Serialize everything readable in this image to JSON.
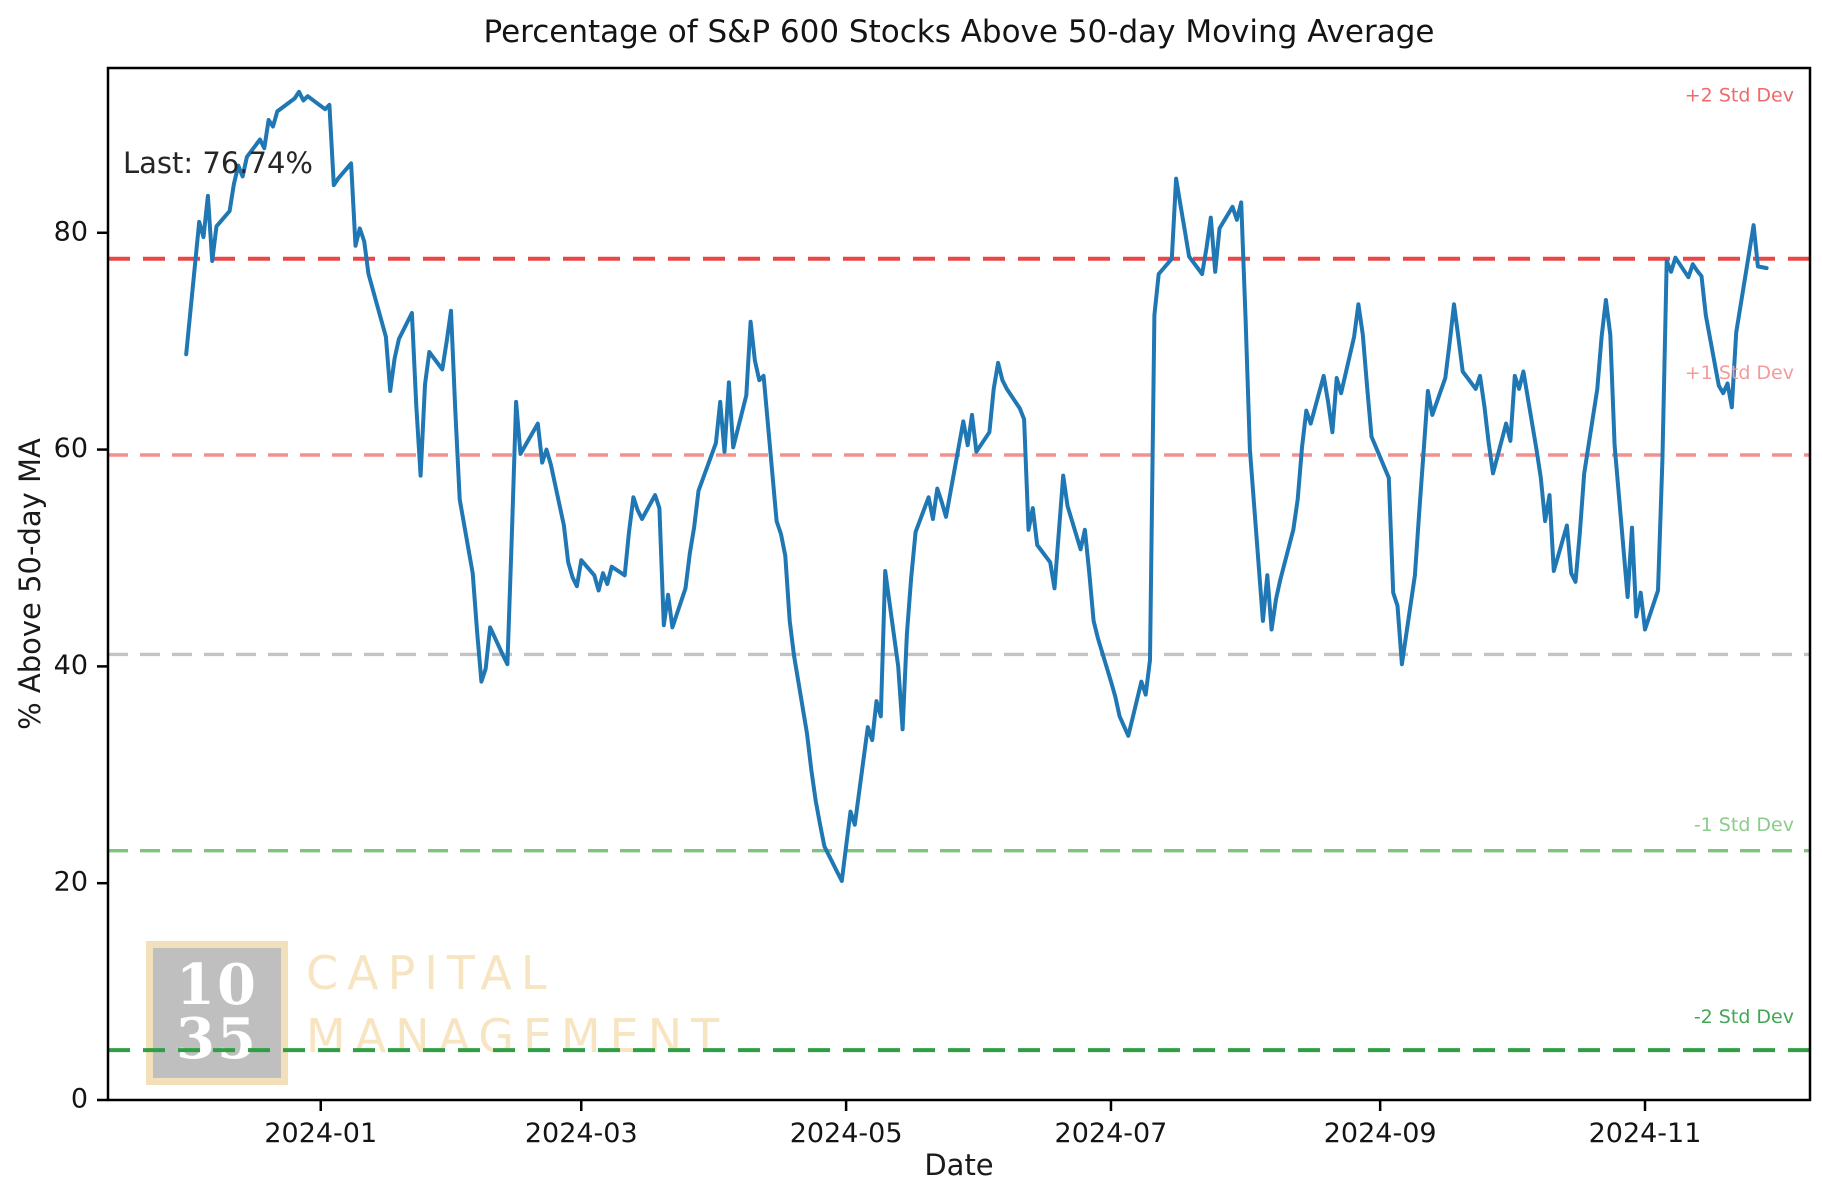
{
  "figure": {
    "title": "Percentage of S&P 600 Stocks Above 50-day Moving Average",
    "x_axis_label": "Date",
    "y_axis_label": "% Above 50-day MA",
    "last_annotation": "Last: 76.74%"
  },
  "logo": {
    "box_line1": "10",
    "box_line2": "35",
    "text_line1": "CAPITAL",
    "text_line2": "MANAGEMENT",
    "box_color": "#8c8c8c",
    "accent_color": "#e9c882"
  },
  "chart_data": {
    "type": "line",
    "title": "Percentage of S&P 600 Stocks Above 50-day Moving Average",
    "xlabel": "Date",
    "ylabel": "% Above 50-day MA",
    "grid": false,
    "last_value": 76.74,
    "xlim": [
      "2023-11-13",
      "2024-12-09"
    ],
    "ylim": [
      0,
      95.2
    ],
    "y_ticks": [
      {
        "value": 0,
        "label": "0"
      },
      {
        "value": 20,
        "label": "20"
      },
      {
        "value": 40,
        "label": "40"
      },
      {
        "value": 60,
        "label": "60"
      },
      {
        "value": 80,
        "label": "80"
      }
    ],
    "x_ticks": [
      {
        "date": "2024-01-01",
        "label": "2024-01"
      },
      {
        "date": "2024-03-01",
        "label": "2024-03"
      },
      {
        "date": "2024-05-01",
        "label": "2024-05"
      },
      {
        "date": "2024-07-01",
        "label": "2024-07"
      },
      {
        "date": "2024-09-01",
        "label": "2024-09"
      },
      {
        "date": "2024-11-01",
        "label": "2024-11"
      }
    ],
    "reference_lines": [
      {
        "label": "+2 Std Dev",
        "value": 77.6,
        "color": "#e94646",
        "dash": "22 13",
        "width": 4,
        "label_color": "#ef6a6a",
        "label_value": 92.6
      },
      {
        "label": "+1 Std Dev",
        "value": 59.5,
        "color": "#f29090",
        "dash": "20 12",
        "width": 3.4,
        "label_color": "#f29b9b",
        "label_value": 67.0
      },
      {
        "label": "",
        "value": 41.1,
        "color": "#c3c3c3",
        "dash": "20 12",
        "width": 3.4,
        "label_color": "#c3c3c3",
        "label_value": null
      },
      {
        "label": "-1 Std Dev",
        "value": 23.0,
        "color": "#7ec47e",
        "dash": "20 12",
        "width": 3.4,
        "label_color": "#8bcc8b",
        "label_value": 25.3
      },
      {
        "label": "-2 Std Dev",
        "value": 4.6,
        "color": "#2f9e44",
        "dash": "22 13",
        "width": 4,
        "label_color": "#41a755",
        "label_value": 7.6
      }
    ],
    "series": [
      {
        "name": "% of S&P 600 stocks above 50-day MA",
        "color": "#1f77b4",
        "width": 4,
        "points": [
          [
            "2023-12-01",
            68.8
          ],
          [
            "2023-12-04",
            81.0
          ],
          [
            "2023-12-05",
            79.6
          ],
          [
            "2023-12-06",
            83.4
          ],
          [
            "2023-12-07",
            77.4
          ],
          [
            "2023-12-08",
            80.6
          ],
          [
            "2023-12-11",
            82.0
          ],
          [
            "2023-12-12",
            84.5
          ],
          [
            "2023-12-13",
            86.2
          ],
          [
            "2023-12-14",
            85.2
          ],
          [
            "2023-12-15",
            87.0
          ],
          [
            "2023-12-18",
            88.6
          ],
          [
            "2023-12-19",
            87.8
          ],
          [
            "2023-12-20",
            90.4
          ],
          [
            "2023-12-21",
            89.8
          ],
          [
            "2023-12-22",
            91.2
          ],
          [
            "2023-12-26",
            92.4
          ],
          [
            "2023-12-27",
            93.0
          ],
          [
            "2023-12-28",
            92.2
          ],
          [
            "2023-12-29",
            92.6
          ],
          [
            "2024-01-02",
            91.4
          ],
          [
            "2024-01-03",
            91.8
          ],
          [
            "2024-01-04",
            84.4
          ],
          [
            "2024-01-05",
            85.0
          ],
          [
            "2024-01-08",
            86.4
          ],
          [
            "2024-01-09",
            78.8
          ],
          [
            "2024-01-10",
            80.4
          ],
          [
            "2024-01-11",
            79.2
          ],
          [
            "2024-01-12",
            76.2
          ],
          [
            "2024-01-16",
            70.4
          ],
          [
            "2024-01-17",
            65.4
          ],
          [
            "2024-01-18",
            68.4
          ],
          [
            "2024-01-19",
            70.2
          ],
          [
            "2024-01-22",
            72.6
          ],
          [
            "2024-01-23",
            64.0
          ],
          [
            "2024-01-24",
            57.6
          ],
          [
            "2024-01-25",
            66.0
          ],
          [
            "2024-01-26",
            69.0
          ],
          [
            "2024-01-29",
            67.4
          ],
          [
            "2024-01-30",
            70.0
          ],
          [
            "2024-01-31",
            72.8
          ],
          [
            "2024-02-01",
            63.6
          ],
          [
            "2024-02-02",
            55.4
          ],
          [
            "2024-02-05",
            48.6
          ],
          [
            "2024-02-06",
            43.2
          ],
          [
            "2024-02-07",
            38.6
          ],
          [
            "2024-02-08",
            39.8
          ],
          [
            "2024-02-09",
            43.6
          ],
          [
            "2024-02-12",
            41.0
          ],
          [
            "2024-02-13",
            40.2
          ],
          [
            "2024-02-14",
            52.0
          ],
          [
            "2024-02-15",
            64.4
          ],
          [
            "2024-02-16",
            59.6
          ],
          [
            "2024-02-20",
            62.4
          ],
          [
            "2024-02-21",
            58.8
          ],
          [
            "2024-02-22",
            60.0
          ],
          [
            "2024-02-23",
            58.6
          ],
          [
            "2024-02-26",
            53.0
          ],
          [
            "2024-02-27",
            49.6
          ],
          [
            "2024-02-28",
            48.2
          ],
          [
            "2024-02-29",
            47.4
          ],
          [
            "2024-03-01",
            49.8
          ],
          [
            "2024-03-04",
            48.4
          ],
          [
            "2024-03-05",
            47.0
          ],
          [
            "2024-03-06",
            48.6
          ],
          [
            "2024-03-07",
            47.6
          ],
          [
            "2024-03-08",
            49.2
          ],
          [
            "2024-03-11",
            48.4
          ],
          [
            "2024-03-12",
            52.4
          ],
          [
            "2024-03-13",
            55.6
          ],
          [
            "2024-03-14",
            54.4
          ],
          [
            "2024-03-15",
            53.6
          ],
          [
            "2024-03-18",
            55.8
          ],
          [
            "2024-03-19",
            54.6
          ],
          [
            "2024-03-20",
            43.8
          ],
          [
            "2024-03-21",
            46.6
          ],
          [
            "2024-03-22",
            43.6
          ],
          [
            "2024-03-25",
            47.2
          ],
          [
            "2024-03-26",
            50.4
          ],
          [
            "2024-03-27",
            52.8
          ],
          [
            "2024-03-28",
            56.2
          ],
          [
            "2024-04-01",
            60.6
          ],
          [
            "2024-04-02",
            64.4
          ],
          [
            "2024-04-03",
            59.8
          ],
          [
            "2024-04-04",
            66.2
          ],
          [
            "2024-04-05",
            60.2
          ],
          [
            "2024-04-08",
            65.0
          ],
          [
            "2024-04-09",
            71.8
          ],
          [
            "2024-04-10",
            68.2
          ],
          [
            "2024-04-11",
            66.4
          ],
          [
            "2024-04-12",
            66.8
          ],
          [
            "2024-04-15",
            53.4
          ],
          [
            "2024-04-16",
            52.2
          ],
          [
            "2024-04-17",
            50.2
          ],
          [
            "2024-04-18",
            44.2
          ],
          [
            "2024-04-19",
            41.0
          ],
          [
            "2024-04-22",
            33.8
          ],
          [
            "2024-04-23",
            30.4
          ],
          [
            "2024-04-24",
            27.6
          ],
          [
            "2024-04-25",
            25.4
          ],
          [
            "2024-04-26",
            23.4
          ],
          [
            "2024-04-29",
            21.0
          ],
          [
            "2024-04-30",
            20.2
          ],
          [
            "2024-05-01",
            23.4
          ],
          [
            "2024-05-02",
            26.6
          ],
          [
            "2024-05-03",
            25.4
          ],
          [
            "2024-05-06",
            34.4
          ],
          [
            "2024-05-07",
            33.2
          ],
          [
            "2024-05-08",
            36.8
          ],
          [
            "2024-05-09",
            35.4
          ],
          [
            "2024-05-10",
            48.8
          ],
          [
            "2024-05-13",
            40.0
          ],
          [
            "2024-05-14",
            34.2
          ],
          [
            "2024-05-15",
            43.0
          ],
          [
            "2024-05-16",
            48.2
          ],
          [
            "2024-05-17",
            52.4
          ],
          [
            "2024-05-20",
            55.6
          ],
          [
            "2024-05-21",
            53.6
          ],
          [
            "2024-05-22",
            56.4
          ],
          [
            "2024-05-23",
            55.2
          ],
          [
            "2024-05-24",
            53.8
          ],
          [
            "2024-05-28",
            62.6
          ],
          [
            "2024-05-29",
            60.4
          ],
          [
            "2024-05-30",
            63.2
          ],
          [
            "2024-05-31",
            59.8
          ],
          [
            "2024-06-03",
            61.6
          ],
          [
            "2024-06-04",
            65.6
          ],
          [
            "2024-06-05",
            68.0
          ],
          [
            "2024-06-06",
            66.4
          ],
          [
            "2024-06-07",
            65.6
          ],
          [
            "2024-06-10",
            63.8
          ],
          [
            "2024-06-11",
            62.8
          ],
          [
            "2024-06-12",
            52.6
          ],
          [
            "2024-06-13",
            54.6
          ],
          [
            "2024-06-14",
            51.2
          ],
          [
            "2024-06-17",
            49.6
          ],
          [
            "2024-06-18",
            47.2
          ],
          [
            "2024-06-20",
            57.6
          ],
          [
            "2024-06-21",
            54.8
          ],
          [
            "2024-06-24",
            50.8
          ],
          [
            "2024-06-25",
            52.6
          ],
          [
            "2024-06-26",
            48.6
          ],
          [
            "2024-06-27",
            44.2
          ],
          [
            "2024-06-28",
            42.6
          ],
          [
            "2024-07-01",
            38.6
          ],
          [
            "2024-07-02",
            37.2
          ],
          [
            "2024-07-03",
            35.4
          ],
          [
            "2024-07-05",
            33.6
          ],
          [
            "2024-07-08",
            38.6
          ],
          [
            "2024-07-09",
            37.4
          ],
          [
            "2024-07-10",
            40.6
          ],
          [
            "2024-07-11",
            72.4
          ],
          [
            "2024-07-12",
            76.2
          ],
          [
            "2024-07-15",
            77.6
          ],
          [
            "2024-07-16",
            85.0
          ],
          [
            "2024-07-17",
            82.6
          ],
          [
            "2024-07-18",
            80.2
          ],
          [
            "2024-07-19",
            77.8
          ],
          [
            "2024-07-22",
            76.2
          ],
          [
            "2024-07-23",
            78.6
          ],
          [
            "2024-07-24",
            81.4
          ],
          [
            "2024-07-25",
            76.4
          ],
          [
            "2024-07-26",
            80.4
          ],
          [
            "2024-07-29",
            82.4
          ],
          [
            "2024-07-30",
            81.2
          ],
          [
            "2024-07-31",
            82.8
          ],
          [
            "2024-08-01",
            72.0
          ],
          [
            "2024-08-02",
            60.0
          ],
          [
            "2024-08-05",
            44.2
          ],
          [
            "2024-08-06",
            48.4
          ],
          [
            "2024-08-07",
            43.4
          ],
          [
            "2024-08-08",
            46.2
          ],
          [
            "2024-08-09",
            48.0
          ],
          [
            "2024-08-12",
            52.6
          ],
          [
            "2024-08-13",
            55.4
          ],
          [
            "2024-08-14",
            60.2
          ],
          [
            "2024-08-15",
            63.6
          ],
          [
            "2024-08-16",
            62.4
          ],
          [
            "2024-08-19",
            66.8
          ],
          [
            "2024-08-20",
            64.4
          ],
          [
            "2024-08-21",
            61.6
          ],
          [
            "2024-08-22",
            66.6
          ],
          [
            "2024-08-23",
            65.2
          ],
          [
            "2024-08-26",
            70.4
          ],
          [
            "2024-08-27",
            73.4
          ],
          [
            "2024-08-28",
            70.6
          ],
          [
            "2024-08-29",
            65.8
          ],
          [
            "2024-08-30",
            61.2
          ],
          [
            "2024-09-03",
            57.4
          ],
          [
            "2024-09-04",
            46.8
          ],
          [
            "2024-09-05",
            45.6
          ],
          [
            "2024-09-06",
            40.2
          ],
          [
            "2024-09-09",
            48.4
          ],
          [
            "2024-09-10",
            54.2
          ],
          [
            "2024-09-11",
            59.8
          ],
          [
            "2024-09-12",
            65.4
          ],
          [
            "2024-09-13",
            63.2
          ],
          [
            "2024-09-16",
            66.6
          ],
          [
            "2024-09-17",
            69.8
          ],
          [
            "2024-09-18",
            73.4
          ],
          [
            "2024-09-19",
            70.4
          ],
          [
            "2024-09-20",
            67.2
          ],
          [
            "2024-09-23",
            65.6
          ],
          [
            "2024-09-24",
            66.8
          ],
          [
            "2024-09-25",
            64.0
          ],
          [
            "2024-09-26",
            60.6
          ],
          [
            "2024-09-27",
            57.8
          ],
          [
            "2024-09-30",
            62.4
          ],
          [
            "2024-10-01",
            60.8
          ],
          [
            "2024-10-02",
            66.8
          ],
          [
            "2024-10-03",
            65.6
          ],
          [
            "2024-10-04",
            67.2
          ],
          [
            "2024-10-07",
            60.0
          ],
          [
            "2024-10-08",
            57.4
          ],
          [
            "2024-10-09",
            53.4
          ],
          [
            "2024-10-10",
            55.8
          ],
          [
            "2024-10-11",
            48.8
          ],
          [
            "2024-10-14",
            53.0
          ],
          [
            "2024-10-15",
            48.6
          ],
          [
            "2024-10-16",
            47.8
          ],
          [
            "2024-10-17",
            52.4
          ],
          [
            "2024-10-18",
            57.8
          ],
          [
            "2024-10-21",
            65.6
          ],
          [
            "2024-10-22",
            70.4
          ],
          [
            "2024-10-23",
            73.8
          ],
          [
            "2024-10-24",
            70.6
          ],
          [
            "2024-10-25",
            60.4
          ],
          [
            "2024-10-28",
            46.4
          ],
          [
            "2024-10-29",
            52.8
          ],
          [
            "2024-10-30",
            44.6
          ],
          [
            "2024-10-31",
            46.8
          ],
          [
            "2024-11-01",
            43.4
          ],
          [
            "2024-11-04",
            47.0
          ],
          [
            "2024-11-05",
            59.0
          ],
          [
            "2024-11-06",
            77.4
          ],
          [
            "2024-11-07",
            76.4
          ],
          [
            "2024-11-08",
            77.7
          ],
          [
            "2024-11-11",
            75.9
          ],
          [
            "2024-11-12",
            77.1
          ],
          [
            "2024-11-13",
            76.5
          ],
          [
            "2024-11-14",
            76.0
          ],
          [
            "2024-11-15",
            72.4
          ],
          [
            "2024-11-18",
            65.9
          ],
          [
            "2024-11-19",
            65.2
          ],
          [
            "2024-11-20",
            66.1
          ],
          [
            "2024-11-21",
            63.9
          ],
          [
            "2024-11-22",
            70.8
          ],
          [
            "2024-11-25",
            78.2
          ],
          [
            "2024-11-26",
            80.7
          ],
          [
            "2024-11-27",
            76.9
          ],
          [
            "2024-11-29",
            76.74
          ]
        ]
      }
    ]
  }
}
